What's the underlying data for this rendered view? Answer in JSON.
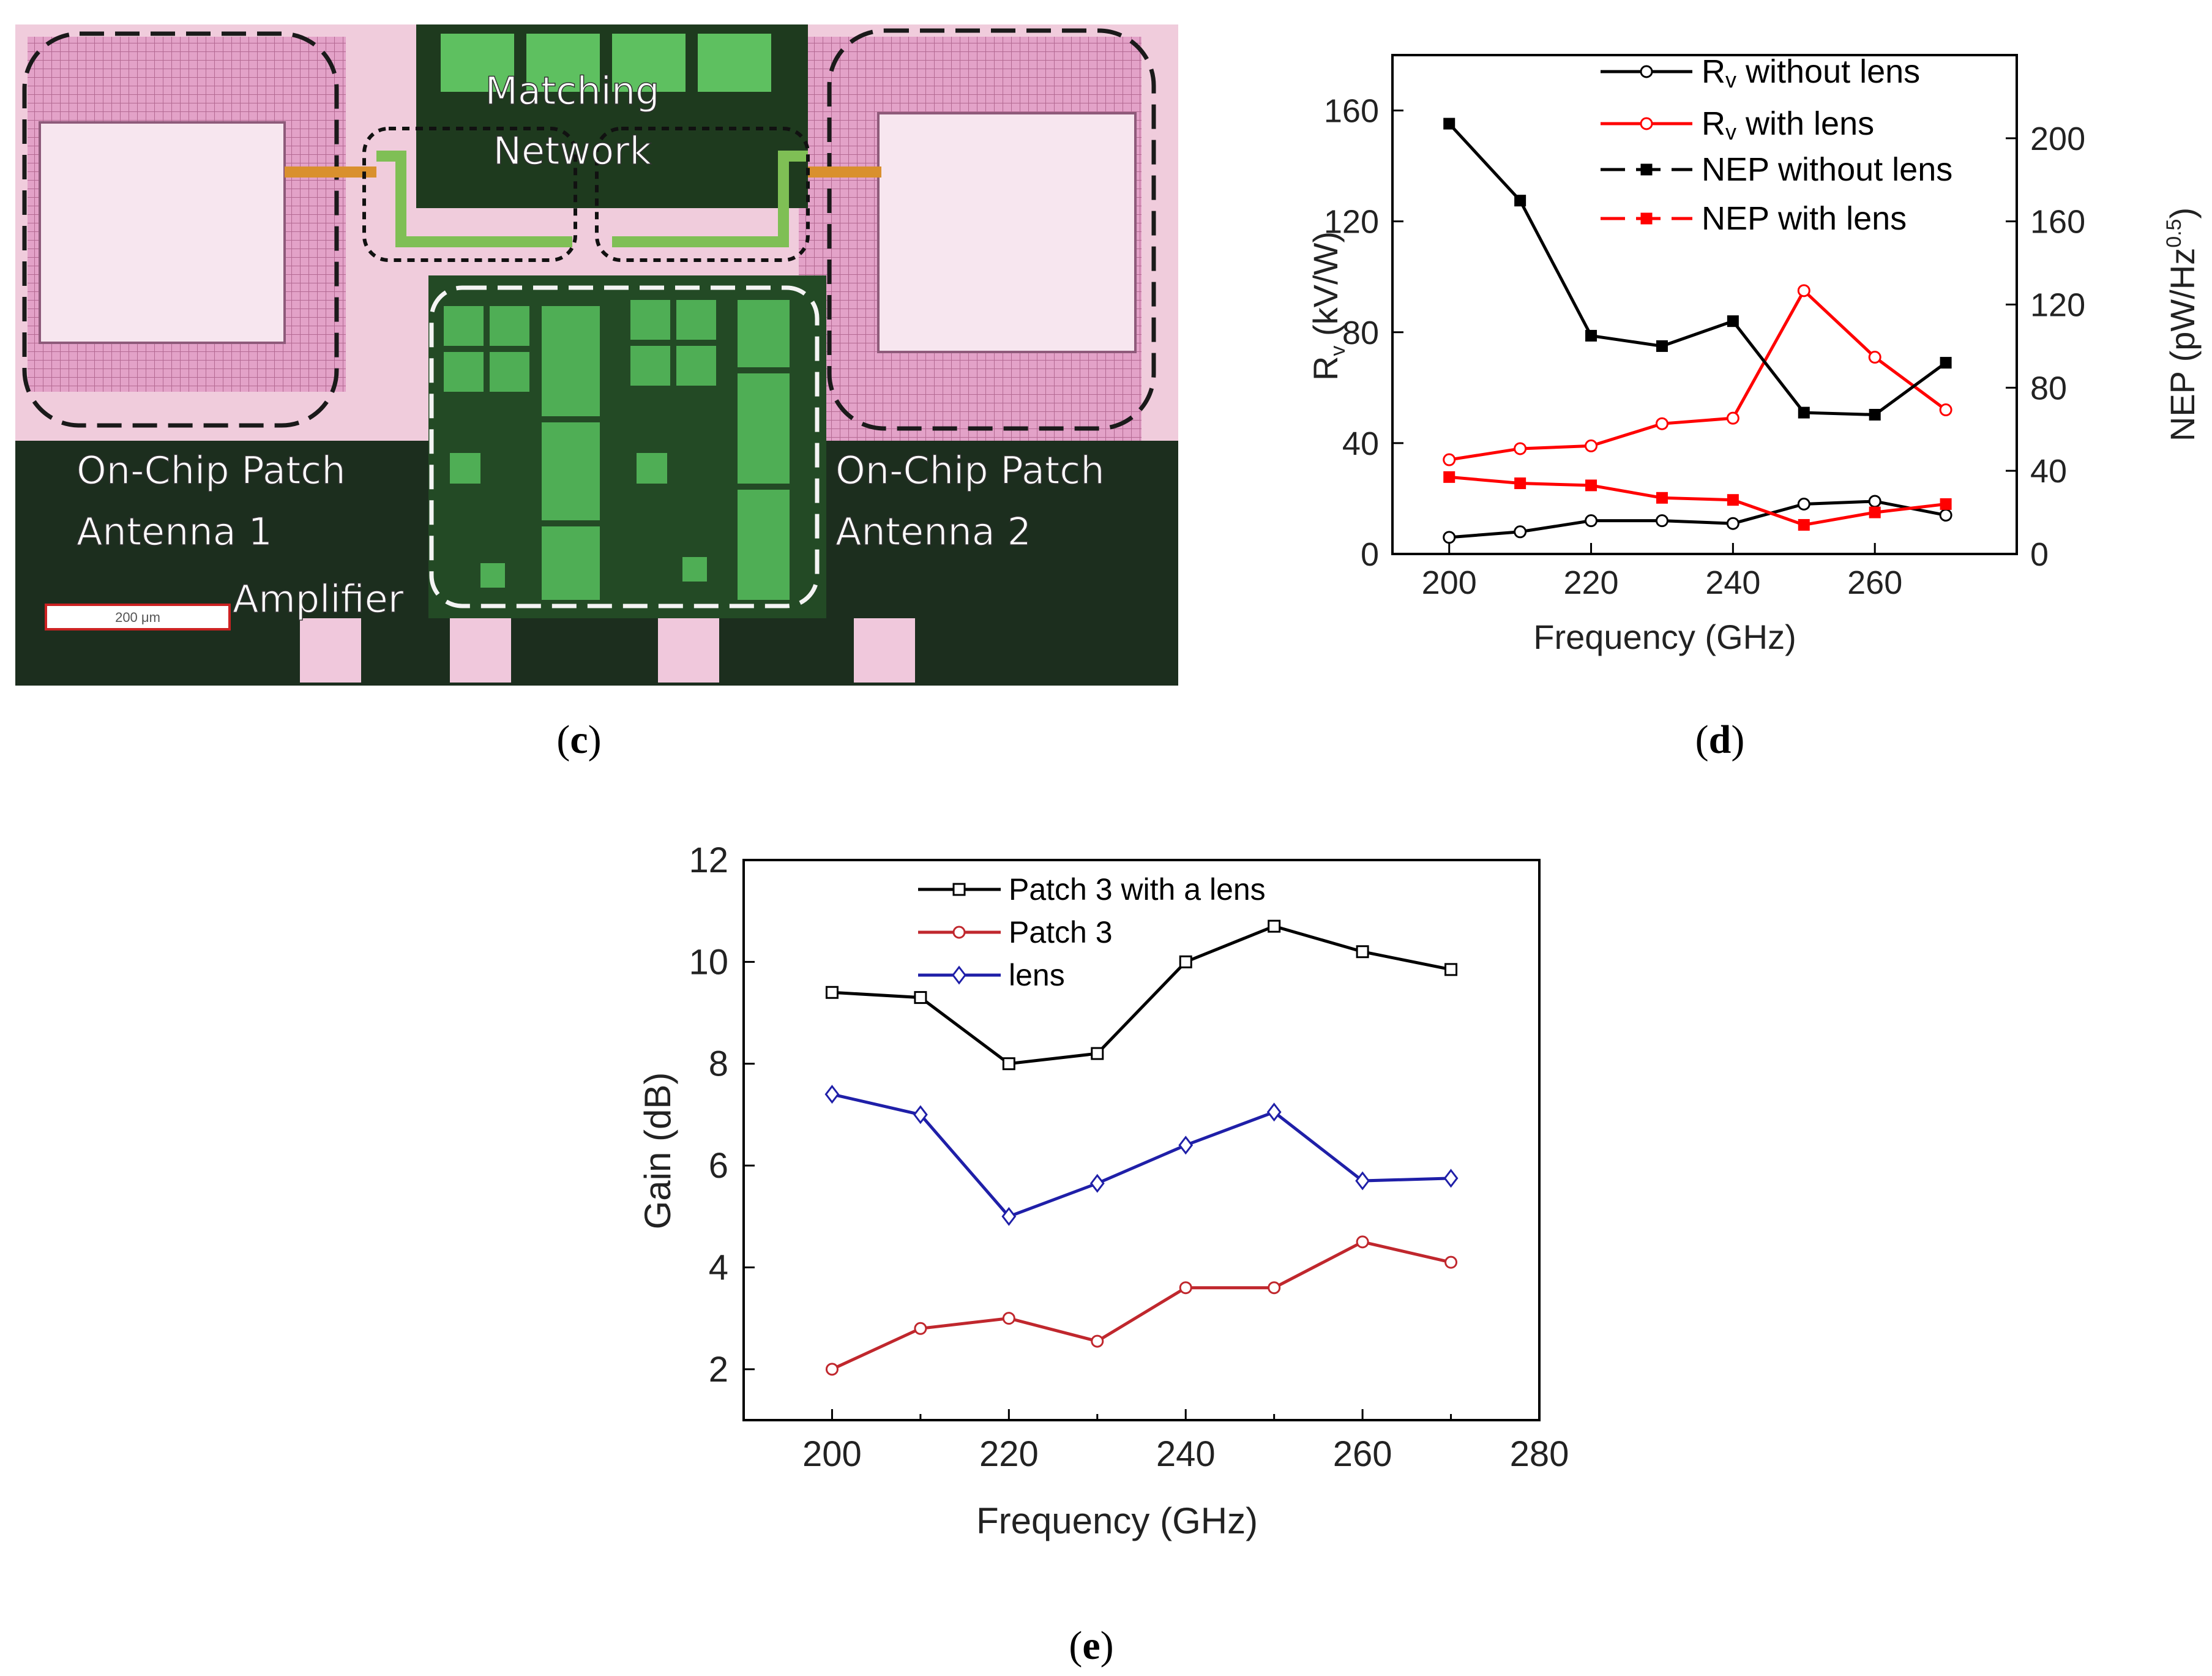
{
  "panels": {
    "c": {
      "caption": "c",
      "labels": {
        "matching_line1": "Matching",
        "matching_line2": "Network",
        "antenna1_line1": "On-Chip Patch",
        "antenna1_line2": "Antenna 1",
        "antenna2_line1": "On-Chip Patch",
        "antenna2_line2": "Antenna 2",
        "amplifier": "Amplifier",
        "scale_bar": "200 μm"
      }
    },
    "d": {
      "caption": "d"
    },
    "e": {
      "caption": "e"
    }
  },
  "colors": {
    "black": "#000000",
    "red": "#ff0000",
    "dark_red": "#c0272d",
    "blue": "#1f1fa8",
    "chip_green": "#2f8a3a",
    "chip_pink": "#e9a5cd",
    "chip_dark": "#1e3a1e"
  },
  "chart_data": [
    {
      "id": "d",
      "type": "line",
      "x": [
        200,
        210,
        220,
        230,
        240,
        250,
        260,
        270
      ],
      "xlabel": "Frequency (GHz)",
      "ylabel": "R",
      "ylabel_sub": "v",
      "ylabel_unit": "(kV/W)",
      "y2label": "NEP (pW/Hz",
      "y2label_sup": "0.5",
      "y2label_close": ")",
      "xlim": [
        192,
        280
      ],
      "ylim": [
        0,
        180
      ],
      "y2lim": [
        0,
        240
      ],
      "xticks": [
        200,
        220,
        240,
        260
      ],
      "yticks": [
        0,
        40,
        80,
        120,
        160
      ],
      "y2ticks": [
        0,
        40,
        80,
        120,
        160,
        200
      ],
      "legend_position": "top-center",
      "series": [
        {
          "name": "Rv without lens",
          "legend_main": "R",
          "legend_sub": "v",
          "legend_rest": " without lens",
          "axis": "left",
          "color": "#000000",
          "marker": "circle",
          "dash": "solid",
          "values": [
            6,
            8,
            12,
            12,
            11,
            18,
            19,
            14
          ]
        },
        {
          "name": "Rv with lens",
          "legend_main": "R",
          "legend_sub": "v",
          "legend_rest": " with lens",
          "axis": "left",
          "color": "#ff0000",
          "marker": "circle",
          "dash": "solid",
          "values": [
            34,
            38,
            39,
            47,
            49,
            95,
            71,
            52
          ]
        },
        {
          "name": "NEP without lens",
          "legend_main": "NEP without lens",
          "legend_sub": "",
          "legend_rest": "",
          "axis": "right",
          "color": "#000000",
          "marker": "square",
          "dash": "solid",
          "values": [
            207,
            170,
            105,
            100,
            112,
            68,
            67,
            92
          ]
        },
        {
          "name": "NEP with lens",
          "legend_main": "NEP with lens",
          "legend_sub": "",
          "legend_rest": "",
          "axis": "right",
          "color": "#ff0000",
          "marker": "square",
          "dash": "solid",
          "values": [
            37,
            34,
            33,
            27,
            26,
            14,
            20,
            24
          ]
        }
      ]
    },
    {
      "id": "e",
      "type": "line",
      "x": [
        200,
        210,
        220,
        230,
        240,
        250,
        260,
        270
      ],
      "xlabel": "Frequency (GHz)",
      "ylabel": "Gain (dB)",
      "xlim": [
        190,
        280
      ],
      "ylim": [
        1,
        12
      ],
      "xticks": [
        200,
        220,
        240,
        260,
        280
      ],
      "yticks": [
        2,
        4,
        6,
        8,
        10,
        12
      ],
      "legend_position": "top-left",
      "series": [
        {
          "name": "Patch 3 with a lens",
          "color": "#000000",
          "marker": "square",
          "values": [
            9.4,
            9.3,
            8.0,
            8.2,
            10.0,
            10.7,
            10.2,
            9.85
          ]
        },
        {
          "name": "Patch 3",
          "color": "#c0272d",
          "marker": "circle",
          "values": [
            2.0,
            2.8,
            3.0,
            2.55,
            3.6,
            3.6,
            4.5,
            4.1
          ]
        },
        {
          "name": "lens",
          "color": "#1f1fa8",
          "marker": "diamond",
          "values": [
            7.4,
            7.0,
            5.0,
            5.65,
            6.4,
            7.05,
            5.7,
            5.75
          ]
        }
      ]
    }
  ]
}
